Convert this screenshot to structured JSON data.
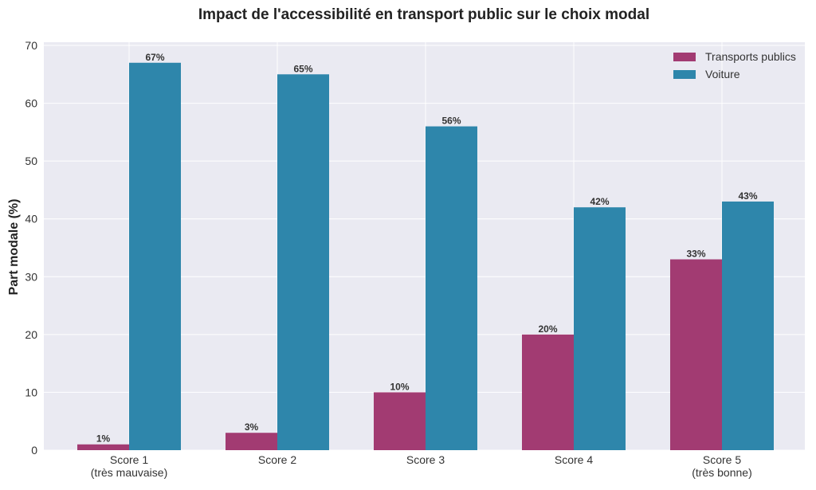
{
  "chart_data": {
    "type": "bar",
    "title": "Impact de l'accessibilité en transport public sur le choix modal",
    "y_label": "Part modale (%)",
    "categories": [
      [
        "Score 1",
        "(très mauvaise)"
      ],
      [
        "Score 2"
      ],
      [
        "Score 3"
      ],
      [
        "Score 4"
      ],
      [
        "Score 5",
        "(très bonne)"
      ]
    ],
    "series": [
      {
        "name": "Transports publics",
        "color": "#a23b72",
        "values": [
          1,
          3,
          10,
          20,
          33
        ],
        "value_labels": [
          "1%",
          "3%",
          "10%",
          "20%",
          "33%"
        ]
      },
      {
        "name": "Voiture",
        "color": "#2e86ab",
        "values": [
          67,
          65,
          56,
          42,
          43
        ],
        "value_labels": [
          "67%",
          "65%",
          "56%",
          "42%",
          "43%"
        ]
      }
    ],
    "ylim": [
      0,
      70
    ],
    "yticks": [
      0,
      10,
      20,
      30,
      40,
      50,
      60,
      70
    ],
    "grid": true,
    "legend": "upper right"
  }
}
